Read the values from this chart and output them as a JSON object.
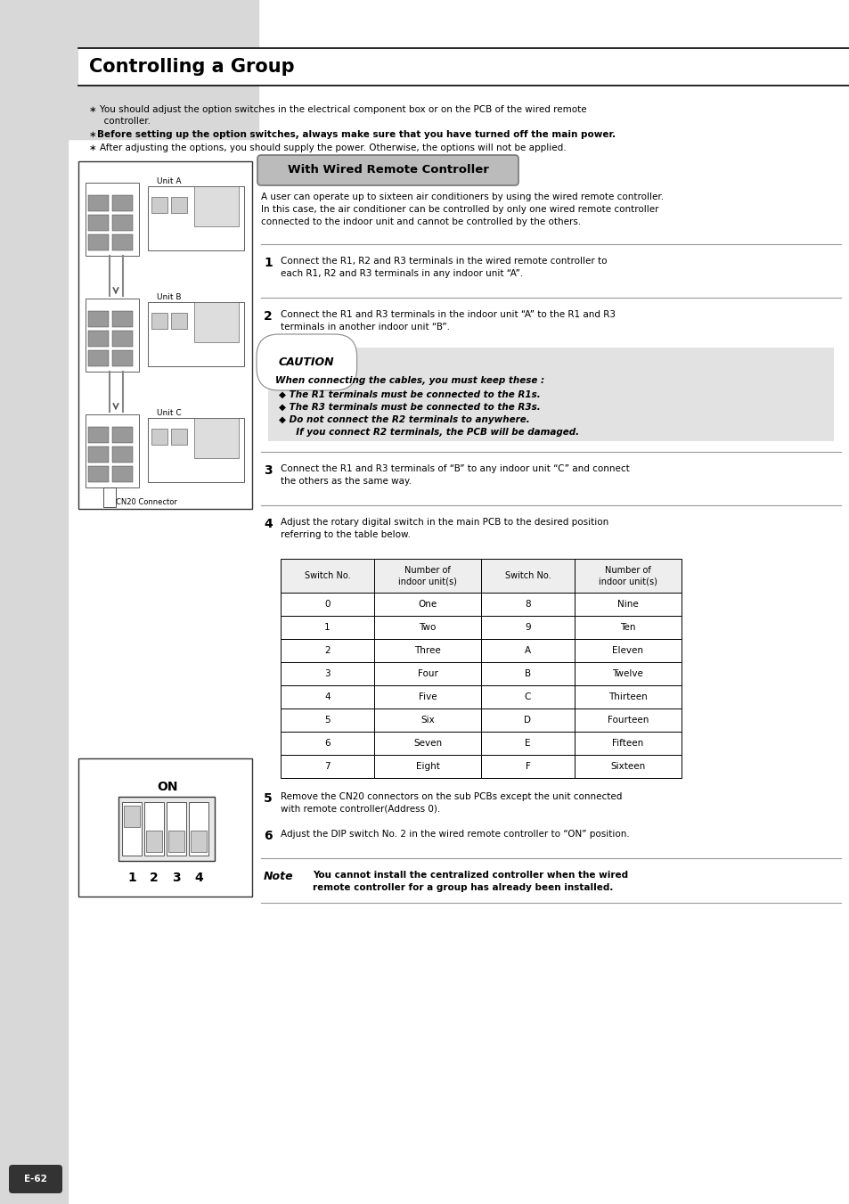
{
  "bg_color": "#ffffff",
  "sidebar_color": "#d8d8d8",
  "title": "Controlling a Group",
  "section_title": "With Wired Remote Controller",
  "intro_text": "A user can operate up to sixteen air conditioners by using the wired remote controller.\nIn this case, the air conditioner can be controlled by only one wired remote controller\nconnected to the indoor unit and cannot be controlled by the others.",
  "steps": [
    {
      "num": "1",
      "text": "Connect the R1, R2 and R3 terminals in the wired remote controller to\neach R1, R2 and R3 terminals in any indoor unit “A”."
    },
    {
      "num": "2",
      "text": "Connect the R1 and R3 terminals in the indoor unit “A” to the R1 and R3\nterminals in another indoor unit “B”."
    },
    {
      "num": "3",
      "text": "Connect the R1 and R3 terminals of “B” to any indoor unit “C” and connect\nthe others as the same way."
    },
    {
      "num": "4",
      "text": "Adjust the rotary digital switch in the main PCB to the desired position\nreferring to the table below."
    },
    {
      "num": "5",
      "text": "Remove the CN20 connectors on the sub PCBs except the unit connected\nwith remote controller(Address 0)."
    },
    {
      "num": "6",
      "text": "Adjust the DIP switch No. 2 in the wired remote controller to “ON” position."
    }
  ],
  "caution_title": "CAUTION",
  "caution_text": "When connecting the cables, you must keep these :",
  "caution_bullets": [
    "The R1 terminals must be connected to the R1s.",
    "The R3 terminals must be connected to the R3s.",
    "Do not connect the R2 terminals to anywhere.",
    "If you connect R2 terminals, the PCB will be damaged."
  ],
  "table_headers": [
    "Switch No.",
    "Number of\nindoor unit(s)",
    "Switch No.",
    "Number of\nindoor unit(s)"
  ],
  "table_rows": [
    [
      "0",
      "One",
      "8",
      "Nine"
    ],
    [
      "1",
      "Two",
      "9",
      "Ten"
    ],
    [
      "2",
      "Three",
      "A",
      "Eleven"
    ],
    [
      "3",
      "Four",
      "B",
      "Twelve"
    ],
    [
      "4",
      "Five",
      "C",
      "Thirteen"
    ],
    [
      "5",
      "Six",
      "D",
      "Fourteen"
    ],
    [
      "6",
      "Seven",
      "E",
      "Fifteen"
    ],
    [
      "7",
      "Eight",
      "F",
      "Sixteen"
    ]
  ],
  "note_label": "Note",
  "note_text": "You cannot install the centralized controller when the wired\nremote controller for a group has already been installed.",
  "page_num": "E-62",
  "bullet1_normal": "You should adjust the option switches in the electrical component box or on the PCB of the wired remote",
  "bullet1_cont": "  controller.",
  "bullet2": "Before setting up the option switches, always make sure that you have turned off the main power.",
  "bullet3": "After adjusting the options, you should supply the power. Otherwise, the options will not be applied."
}
